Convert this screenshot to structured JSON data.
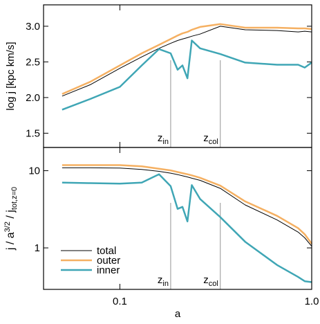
{
  "chart_data": [
    {
      "type": "line",
      "ylabel": "log j [kpc km/s]",
      "xscale": "log",
      "xlim": [
        0.04,
        1.0
      ],
      "xticks": [
        0.1,
        1
      ],
      "xticklabels": false,
      "ylim": [
        1.3,
        3.3
      ],
      "yticks": [
        1.5,
        {
          "value": 2,
          "label": "2.0"
        },
        2.5,
        {
          "value": 3,
          "label": "3.0"
        }
      ],
      "x": [
        0.05,
        0.07,
        0.1,
        0.13,
        0.16,
        0.184,
        0.2,
        0.212,
        0.225,
        0.237,
        0.262,
        0.334,
        0.45,
        0.66,
        0.85,
        0.92,
        1.0
      ],
      "series": [
        {
          "color": "#f5b062",
          "values": [
            2.05,
            2.22,
            2.45,
            2.62,
            2.74,
            2.82,
            2.87,
            2.9,
            2.92,
            2.95,
            2.99,
            3.03,
            2.98,
            2.98,
            2.97,
            2.97,
            2.96
          ]
        },
        {
          "color": "#000000",
          "values": [
            2.02,
            2.18,
            2.41,
            2.57,
            2.69,
            2.76,
            2.8,
            2.82,
            2.84,
            2.86,
            2.89,
            3.0,
            2.95,
            2.94,
            2.92,
            2.93,
            2.92
          ]
        },
        {
          "color": "#3fa6b5",
          "values": [
            1.83,
            1.98,
            2.15,
            2.45,
            2.68,
            2.62,
            2.39,
            2.45,
            2.27,
            2.8,
            2.69,
            2.61,
            2.49,
            2.46,
            2.46,
            2.42,
            2.49
          ]
        }
      ],
      "vlines": [
        {
          "x": 0.184,
          "label": "z",
          "sub": "in"
        },
        {
          "x": 0.334,
          "label": "z",
          "sub": "col"
        }
      ]
    },
    {
      "type": "line",
      "xlabel": "a",
      "ylabel_parts": [
        {
          "text": "j / a"
        },
        {
          "text": "3/2",
          "shift": "sup"
        },
        {
          "text": " / j"
        },
        {
          "text": "tot,z=0",
          "shift": "sub"
        }
      ],
      "xscale": "log",
      "yscale": "log",
      "xlim": [
        0.04,
        1.0
      ],
      "xticks": [
        0.1,
        {
          "value": 1,
          "label": "1.0"
        }
      ],
      "xticklabels": true,
      "ylim": [
        0.29,
        20
      ],
      "yticks": [
        1,
        10
      ],
      "legend": "lower left",
      "x": [
        0.05,
        0.07,
        0.1,
        0.13,
        0.16,
        0.184,
        0.2,
        0.212,
        0.225,
        0.237,
        0.262,
        0.334,
        0.45,
        0.66,
        0.85,
        0.92,
        1.0
      ],
      "series": [
        {
          "name": "total",
          "color": "#000000",
          "values": [
            10.9,
            10.9,
            10.8,
            10.4,
            9.8,
            9.3,
            8.9,
            8.6,
            8.3,
            8.0,
            7.5,
            5.9,
            3.6,
            2.3,
            1.6,
            1.35,
            1.05
          ]
        },
        {
          "name": "outer",
          "color": "#f5b062",
          "values": [
            11.8,
            11.8,
            11.8,
            11.4,
            10.6,
            10.1,
            9.6,
            9.3,
            9.0,
            8.7,
            8.1,
            6.4,
            4.0,
            2.6,
            1.8,
            1.5,
            1.13
          ]
        },
        {
          "name": "inner",
          "color": "#3fa6b5",
          "values": [
            7.0,
            6.9,
            6.8,
            7.0,
            9.0,
            6.3,
            3.2,
            3.4,
            2.2,
            6.5,
            4.3,
            2.5,
            1.2,
            0.6,
            0.42,
            0.37,
            0.36
          ]
        }
      ],
      "vlines": [
        {
          "x": 0.184,
          "label": "z",
          "sub": "in"
        },
        {
          "x": 0.334,
          "label": "z",
          "sub": "col"
        }
      ]
    }
  ]
}
